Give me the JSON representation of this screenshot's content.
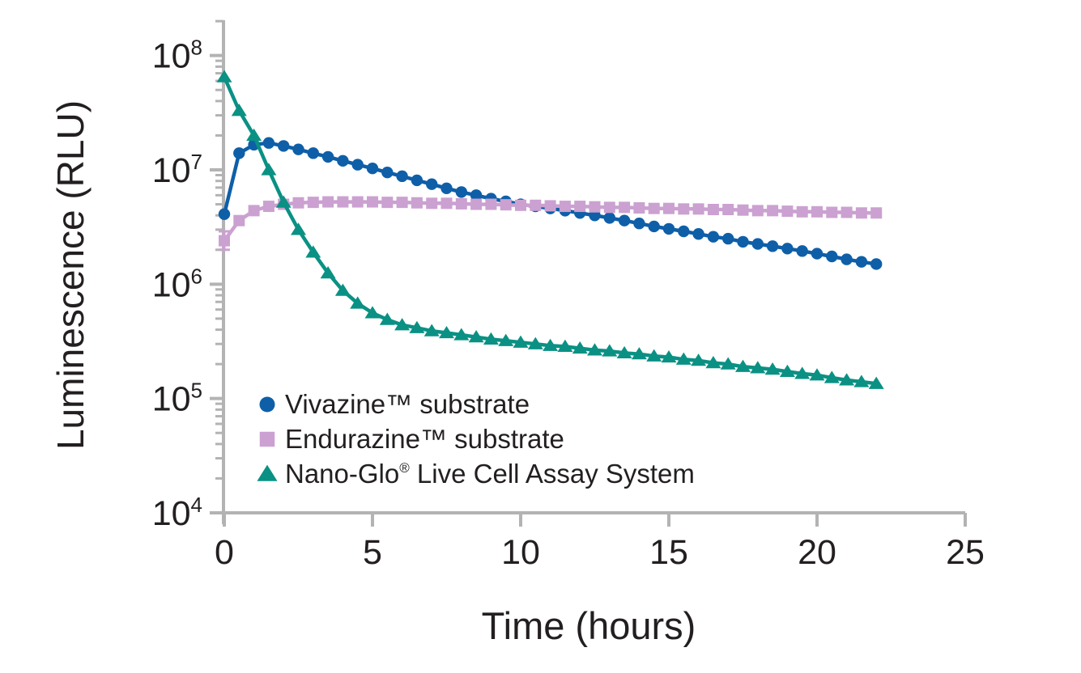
{
  "colors": {
    "background": "#FFFFFF",
    "axis": "#B3B3B3",
    "text": "#231F20",
    "vivazine_blue": "#0E5FA8",
    "endurazine_pink": "#CBA1D1",
    "nanoglo_teal": "#0A9184"
  },
  "chart_data": {
    "type": "line",
    "title": "",
    "xlabel": "Time (hours)",
    "ylabel": "Luminescence (RLU)",
    "x_scale": "linear",
    "y_scale": "log",
    "xlim": [
      0,
      25
    ],
    "ylim": [
      10000,
      200000000
    ],
    "grid": false,
    "legend_position": "inside-lower-left",
    "x_ticks": [
      0,
      5,
      10,
      15,
      20,
      25
    ],
    "x_tick_labels": [
      "0",
      "5",
      "10",
      "15",
      "20",
      "25"
    ],
    "y_tick_base": "10",
    "y_tick_exponents": [
      8,
      7,
      6,
      5,
      4
    ],
    "x": [
      0,
      0.5,
      1,
      1.5,
      2,
      2.5,
      3,
      3.5,
      4,
      4.5,
      5,
      5.5,
      6,
      6.5,
      7,
      7.5,
      8,
      8.5,
      9,
      9.5,
      10,
      10.5,
      11,
      11.5,
      12,
      12.5,
      13,
      13.5,
      14,
      14.5,
      15,
      15.5,
      16,
      16.5,
      17,
      17.5,
      18,
      18.5,
      19,
      19.5,
      20,
      20.5,
      21,
      21.5,
      22
    ],
    "series": [
      {
        "name": "Vivazine™ substrate",
        "marker": "circle",
        "color": "#0E5FA8",
        "values": [
          4100000.0,
          14000000.0,
          16600000.0,
          17200000.0,
          16200000.0,
          15100000.0,
          14000000.0,
          13000000.0,
          12000000.0,
          11100000.0,
          10300000.0,
          9500000.0,
          8800000.0,
          8100000.0,
          7500000.0,
          6900000.0,
          6400000.0,
          6000000.0,
          5600000.0,
          5300000.0,
          5000000.0,
          4800000.0,
          4600000.0,
          4400000.0,
          4200000.0,
          4000000.0,
          3800000.0,
          3600000.0,
          3400000.0,
          3200000.0,
          3050000.0,
          2900000.0,
          2750000.0,
          2600000.0,
          2500000.0,
          2350000.0,
          2250000.0,
          2150000.0,
          2050000.0,
          1950000.0,
          1850000.0,
          1750000.0,
          1650000.0,
          1570000.0,
          1500000.0
        ],
        "error_bars": []
      },
      {
        "name": "Endurazine™ substrate",
        "marker": "square",
        "color": "#CBA1D1",
        "values": [
          2400000.0,
          3600000.0,
          4400000.0,
          4800000.0,
          5000000.0,
          5150000.0,
          5200000.0,
          5250000.0,
          5250000.0,
          5250000.0,
          5250000.0,
          5200000.0,
          5200000.0,
          5150000.0,
          5100000.0,
          5100000.0,
          5050000.0,
          5000000.0,
          5000000.0,
          4950000.0,
          4900000.0,
          4900000.0,
          4850000.0,
          4800000.0,
          4800000.0,
          4750000.0,
          4700000.0,
          4700000.0,
          4650000.0,
          4600000.0,
          4600000.0,
          4550000.0,
          4550000.0,
          4500000.0,
          4500000.0,
          4450000.0,
          4400000.0,
          4400000.0,
          4350000.0,
          4300000.0,
          4300000.0,
          4250000.0,
          4250000.0,
          4200000.0,
          4200000.0
        ],
        "error_bars": [
          {
            "x": 0,
            "lo": 2000000.0,
            "hi": 2900000.0
          }
        ]
      },
      {
        "name": "Nano-Glo® Live Cell Assay System",
        "marker": "triangle",
        "color": "#0A9184",
        "values": [
          65000000.0,
          33000000.0,
          20000000.0,
          10000000.0,
          5200000.0,
          3000000.0,
          1900000.0,
          1250000.0,
          880000.0,
          680000.0,
          560000.0,
          490000.0,
          440000.0,
          415000.0,
          390000.0,
          375000.0,
          360000.0,
          345000.0,
          330000.0,
          320000.0,
          310000.0,
          300000.0,
          290000.0,
          285000.0,
          275000.0,
          265000.0,
          260000.0,
          250000.0,
          245000.0,
          235000.0,
          230000.0,
          220000.0,
          215000.0,
          205000.0,
          200000.0,
          190000.0,
          185000.0,
          180000.0,
          172000.0,
          165000.0,
          160000.0,
          152000.0,
          145000.0,
          140000.0,
          135000.0
        ],
        "error_bars": []
      }
    ],
    "legend": [
      {
        "label": "Vivazine™ substrate",
        "marker": "circle",
        "color": "#0E5FA8"
      },
      {
        "label": "Endurazine™ substrate",
        "marker": "square",
        "color": "#CBA1D1"
      },
      {
        "label": "Nano-Glo® Live Cell Assay System",
        "marker": "triangle",
        "color": "#0A9184"
      }
    ]
  }
}
